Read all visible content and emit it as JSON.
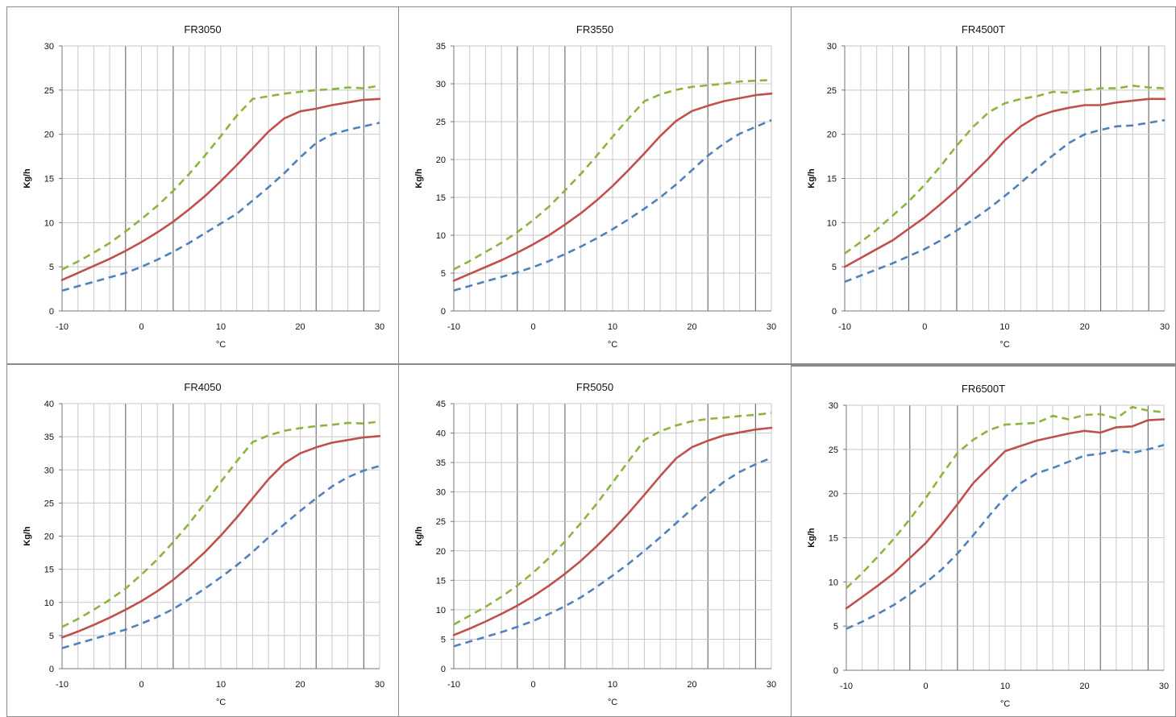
{
  "chart_data": [
    {
      "type": "line",
      "title": "FR3050",
      "xlabel": "°C",
      "ylabel": "Kg/h",
      "xlim": [
        -10,
        30
      ],
      "ylim": [
        0,
        30
      ],
      "xticks": [
        "-10",
        "0",
        "10",
        "20",
        "30"
      ],
      "yticks": [
        "0",
        "5",
        "10",
        "15",
        "20",
        "25",
        "30"
      ],
      "x": [
        -10,
        -8,
        -6,
        -4,
        -2,
        0,
        2,
        4,
        6,
        8,
        10,
        12,
        14,
        16,
        18,
        20,
        22,
        24,
        26,
        28,
        30
      ],
      "series": [
        {
          "color": "#8db43e",
          "dash": "dashed",
          "values": [
            4.7,
            5.6,
            6.6,
            7.7,
            9.0,
            10.4,
            11.9,
            13.6,
            15.5,
            17.6,
            19.8,
            22.1,
            24.0,
            24.3,
            24.6,
            24.8,
            25.0,
            25.1,
            25.3,
            25.2,
            25.5
          ]
        },
        {
          "color": "#c0504d",
          "dash": "solid",
          "values": [
            3.5,
            4.3,
            5.1,
            5.9,
            6.8,
            7.8,
            8.9,
            10.1,
            11.5,
            13.0,
            14.7,
            16.5,
            18.4,
            20.3,
            21.8,
            22.6,
            22.9,
            23.3,
            23.6,
            23.9,
            24.0
          ]
        },
        {
          "color": "#4f81bd",
          "dash": "dashed",
          "values": [
            2.3,
            2.8,
            3.3,
            3.8,
            4.3,
            5.0,
            5.8,
            6.7,
            7.7,
            8.8,
            9.9,
            11.0,
            12.5,
            14.0,
            15.6,
            17.4,
            19.0,
            20.0,
            20.5,
            20.9,
            21.3
          ]
        }
      ]
    },
    {
      "type": "line",
      "title": "FR3550",
      "xlabel": "°C",
      "ylabel": "Kg/h",
      "xlim": [
        -10,
        30
      ],
      "ylim": [
        0,
        35
      ],
      "xticks": [
        "-10",
        "0",
        "10",
        "20",
        "30"
      ],
      "yticks": [
        "0",
        "5",
        "10",
        "15",
        "20",
        "25",
        "30",
        "35"
      ],
      "x": [
        -10,
        -8,
        -6,
        -4,
        -2,
        0,
        2,
        4,
        6,
        8,
        10,
        12,
        14,
        16,
        18,
        20,
        22,
        24,
        26,
        28,
        30
      ],
      "series": [
        {
          "color": "#8db43e",
          "dash": "dashed",
          "values": [
            5.5,
            6.6,
            7.8,
            9.0,
            10.4,
            12.0,
            13.8,
            15.9,
            18.1,
            20.5,
            23.0,
            25.4,
            27.7,
            28.6,
            29.2,
            29.6,
            29.8,
            30.0,
            30.3,
            30.4,
            30.5
          ]
        },
        {
          "color": "#c0504d",
          "dash": "solid",
          "values": [
            4.0,
            4.9,
            5.8,
            6.7,
            7.7,
            8.8,
            10.0,
            11.4,
            12.9,
            14.6,
            16.5,
            18.6,
            20.8,
            23.1,
            25.1,
            26.4,
            27.1,
            27.7,
            28.1,
            28.5,
            28.7
          ]
        },
        {
          "color": "#4f81bd",
          "dash": "dashed",
          "values": [
            2.7,
            3.3,
            3.9,
            4.5,
            5.1,
            5.8,
            6.6,
            7.5,
            8.5,
            9.6,
            10.8,
            12.1,
            13.5,
            15.0,
            16.7,
            18.6,
            20.5,
            22.1,
            23.4,
            24.3,
            25.2
          ]
        }
      ]
    },
    {
      "type": "line",
      "title": "FR4500T",
      "xlabel": "°C",
      "ylabel": "Kg/h",
      "xlim": [
        -10,
        30
      ],
      "ylim": [
        0,
        30
      ],
      "xticks": [
        "-10",
        "0",
        "10",
        "20",
        "30"
      ],
      "yticks": [
        "0",
        "5",
        "10",
        "15",
        "20",
        "25",
        "30"
      ],
      "x": [
        -10,
        -8,
        -6,
        -4,
        -2,
        0,
        2,
        4,
        6,
        8,
        10,
        12,
        14,
        16,
        18,
        20,
        22,
        24,
        26,
        28,
        30
      ],
      "series": [
        {
          "color": "#8db43e",
          "dash": "dashed",
          "values": [
            6.5,
            7.8,
            9.2,
            10.8,
            12.4,
            14.3,
            16.4,
            18.7,
            20.8,
            22.5,
            23.5,
            24.0,
            24.3,
            24.8,
            24.7,
            25.0,
            25.2,
            25.2,
            25.5,
            25.3,
            25.2
          ]
        },
        {
          "color": "#c0504d",
          "dash": "solid",
          "values": [
            5.0,
            6.0,
            7.0,
            8.0,
            9.3,
            10.6,
            12.1,
            13.7,
            15.5,
            17.3,
            19.3,
            20.9,
            22.0,
            22.6,
            23.0,
            23.3,
            23.3,
            23.6,
            23.8,
            24.0,
            24.0
          ]
        },
        {
          "color": "#4f81bd",
          "dash": "dashed",
          "values": [
            3.3,
            4.0,
            4.7,
            5.4,
            6.2,
            7.0,
            8.0,
            9.1,
            10.3,
            11.6,
            13.0,
            14.5,
            16.1,
            17.6,
            19.0,
            20.0,
            20.5,
            20.9,
            21.0,
            21.3,
            21.6
          ]
        }
      ]
    },
    {
      "type": "line",
      "title": "FR4050",
      "xlabel": "°C",
      "ylabel": "Kg/h",
      "xlim": [
        -10,
        30
      ],
      "ylim": [
        0,
        40
      ],
      "xticks": [
        "-10",
        "0",
        "10",
        "20",
        "30"
      ],
      "yticks": [
        "0",
        "5",
        "10",
        "15",
        "20",
        "25",
        "30",
        "35",
        "40"
      ],
      "x": [
        -10,
        -8,
        -6,
        -4,
        -2,
        0,
        2,
        4,
        6,
        8,
        10,
        12,
        14,
        16,
        18,
        20,
        22,
        24,
        26,
        28,
        30
      ],
      "series": [
        {
          "color": "#8db43e",
          "dash": "dashed",
          "values": [
            6.3,
            7.5,
            8.9,
            10.4,
            12.1,
            14.2,
            16.5,
            19.1,
            21.9,
            25.0,
            28.2,
            31.3,
            34.2,
            35.2,
            35.9,
            36.3,
            36.6,
            36.8,
            37.1,
            37.0,
            37.3
          ]
        },
        {
          "color": "#c0504d",
          "dash": "solid",
          "values": [
            4.7,
            5.6,
            6.6,
            7.7,
            8.9,
            10.2,
            11.7,
            13.4,
            15.4,
            17.6,
            20.1,
            22.8,
            25.7,
            28.6,
            31.0,
            32.5,
            33.4,
            34.1,
            34.5,
            34.9,
            35.1
          ]
        },
        {
          "color": "#4f81bd",
          "dash": "dashed",
          "values": [
            3.1,
            3.8,
            4.5,
            5.2,
            5.9,
            6.8,
            7.8,
            9.0,
            10.5,
            12.1,
            13.8,
            15.6,
            17.6,
            19.8,
            21.8,
            23.8,
            25.7,
            27.5,
            28.9,
            29.9,
            30.6
          ]
        }
      ]
    },
    {
      "type": "line",
      "title": "FR5050",
      "xlabel": "°C",
      "ylabel": "Kg/h",
      "xlim": [
        -10,
        30
      ],
      "ylim": [
        0,
        45
      ],
      "xticks": [
        "-10",
        "0",
        "10",
        "20",
        "30"
      ],
      "yticks": [
        "0",
        "5",
        "10",
        "15",
        "20",
        "25",
        "30",
        "35",
        "40",
        "45"
      ],
      "x": [
        -10,
        -8,
        -6,
        -4,
        -2,
        0,
        2,
        4,
        6,
        8,
        10,
        12,
        14,
        16,
        18,
        20,
        22,
        24,
        26,
        28,
        30
      ],
      "series": [
        {
          "color": "#8db43e",
          "dash": "dashed",
          "values": [
            7.5,
            9.0,
            10.5,
            12.2,
            14.1,
            16.3,
            18.8,
            21.6,
            24.7,
            28.0,
            31.6,
            35.2,
            38.8,
            40.3,
            41.3,
            42.0,
            42.4,
            42.6,
            42.9,
            43.1,
            43.4
          ]
        },
        {
          "color": "#c0504d",
          "dash": "solid",
          "values": [
            5.7,
            6.8,
            8.0,
            9.3,
            10.7,
            12.3,
            14.1,
            16.1,
            18.3,
            20.8,
            23.5,
            26.4,
            29.5,
            32.7,
            35.7,
            37.6,
            38.7,
            39.6,
            40.1,
            40.6,
            40.9
          ]
        },
        {
          "color": "#4f81bd",
          "dash": "dashed",
          "values": [
            3.8,
            4.6,
            5.4,
            6.2,
            7.1,
            8.1,
            9.3,
            10.6,
            12.1,
            13.9,
            15.8,
            17.8,
            20.0,
            22.3,
            24.7,
            27.1,
            29.5,
            31.7,
            33.4,
            34.7,
            35.8
          ]
        }
      ]
    },
    {
      "type": "line",
      "title": "FR6500T",
      "xlabel": "°C",
      "ylabel": "Kg/h",
      "xlim": [
        -10,
        30
      ],
      "ylim": [
        0,
        30
      ],
      "xticks": [
        "-10",
        "0",
        "10",
        "20",
        "30"
      ],
      "yticks": [
        "0",
        "5",
        "10",
        "15",
        "20",
        "25",
        "30"
      ],
      "x": [
        -10,
        -8,
        -6,
        -4,
        -2,
        0,
        2,
        4,
        6,
        8,
        10,
        12,
        14,
        16,
        18,
        20,
        22,
        24,
        26,
        28,
        30
      ],
      "series": [
        {
          "color": "#8db43e",
          "dash": "dashed",
          "values": [
            9.3,
            11.0,
            12.9,
            14.9,
            17.1,
            19.5,
            22.1,
            24.6,
            26.1,
            27.2,
            27.8,
            27.9,
            28.0,
            28.8,
            28.4,
            28.9,
            29.0,
            28.5,
            29.8,
            29.4,
            29.2
          ]
        },
        {
          "color": "#c0504d",
          "dash": "solid",
          "values": [
            7.0,
            8.3,
            9.6,
            11.0,
            12.7,
            14.4,
            16.5,
            18.8,
            21.2,
            23.0,
            24.8,
            25.4,
            26.0,
            26.4,
            26.8,
            27.1,
            26.9,
            27.5,
            27.6,
            28.3,
            28.4
          ]
        },
        {
          "color": "#4f81bd",
          "dash": "dashed",
          "values": [
            4.7,
            5.5,
            6.4,
            7.4,
            8.6,
            9.9,
            11.4,
            13.2,
            15.3,
            17.5,
            19.6,
            21.2,
            22.3,
            22.9,
            23.6,
            24.3,
            24.5,
            24.9,
            24.6,
            25.0,
            25.5
          ]
        }
      ]
    }
  ]
}
